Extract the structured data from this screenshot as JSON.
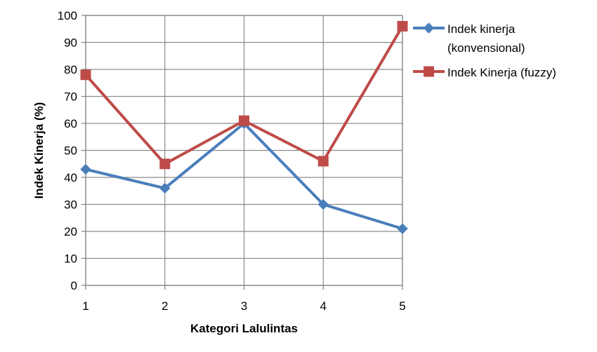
{
  "chart_data": {
    "type": "line",
    "title": "",
    "xlabel": "Kategori Lalulintas",
    "ylabel": "Indek Kinerja (%)",
    "x": [
      1,
      2,
      3,
      4,
      5
    ],
    "ylim": [
      0,
      100
    ],
    "yticks": [
      0,
      10,
      20,
      30,
      40,
      50,
      60,
      70,
      80,
      90,
      100
    ],
    "grid": true,
    "legend_position": "right",
    "series": [
      {
        "name": "Indek kinerja (konvensional)",
        "name_lines": [
          "Indek kinerja",
          "(konvensional)"
        ],
        "color": "#4a7ebb",
        "marker": "diamond",
        "values": [
          43,
          36,
          60,
          30,
          21
        ]
      },
      {
        "name": "Indek Kinerja (fuzzy)",
        "name_lines": [
          "Indek Kinerja (fuzzy)"
        ],
        "color": "#be4b48",
        "marker": "square",
        "values": [
          78,
          45,
          61,
          46,
          96
        ]
      }
    ]
  }
}
